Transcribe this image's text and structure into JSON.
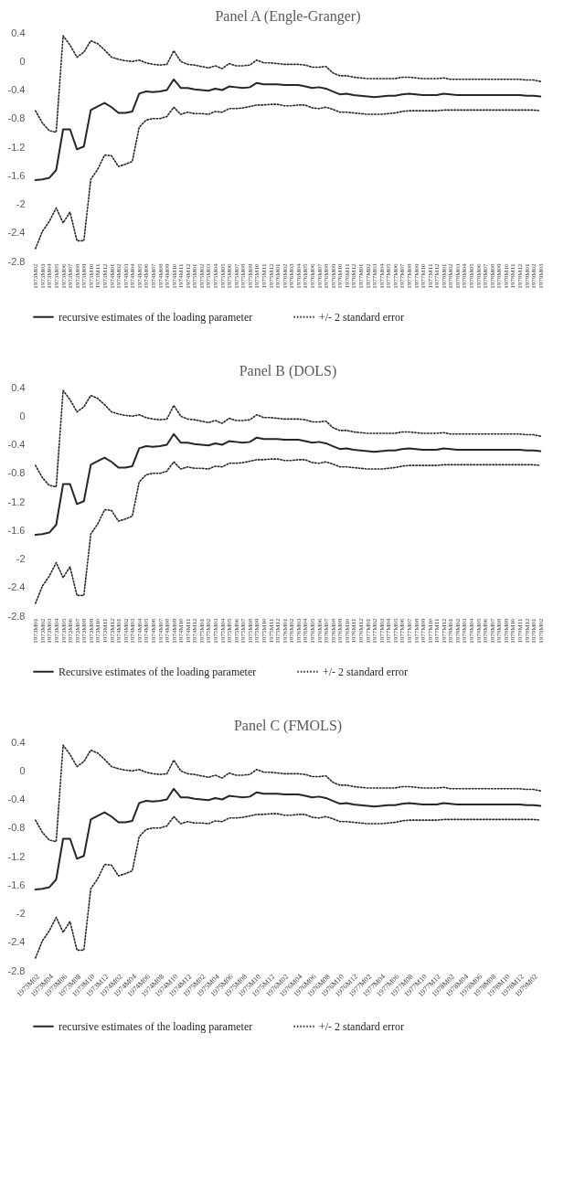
{
  "chart_data": [
    {
      "type": "line",
      "title": "Panel A (Engle-Granger)",
      "legend": "bottom",
      "grid": false,
      "categories": [
        "1973M02",
        "1973M03",
        "1973M04",
        "1973M05",
        "1973M06",
        "1973M07",
        "1973M08",
        "1973M09",
        "1973M10",
        "1973M11",
        "1973M12",
        "1974M01",
        "1974M02",
        "1974M03",
        "1974M04",
        "1974M05",
        "1974M06",
        "1974M07",
        "1974M08",
        "1974M09",
        "1974M10",
        "1974M11",
        "1974M12",
        "1975M01",
        "1975M02",
        "1975M03",
        "1975M04",
        "1975M05",
        "1975M06",
        "1975M07",
        "1975M08",
        "1975M09",
        "1975M10",
        "1975M11",
        "1975M12",
        "1976M01",
        "1976M02",
        "1976M03",
        "1976M04",
        "1976M05",
        "1976M06",
        "1976M07",
        "1976M08",
        "1976M09",
        "1976M10",
        "1976M11",
        "1976M12",
        "1977M01",
        "1977M02",
        "1977M03",
        "1977M04",
        "1977M05",
        "1977M06",
        "1977M07",
        "1977M08",
        "1977M09",
        "1977M10",
        "1977M11",
        "1977M12",
        "1978M01",
        "1978M02",
        "1978M03",
        "1978M04",
        "1978M05",
        "1978M06",
        "1978M07",
        "1978M08",
        "1978M09",
        "1978M10",
        "1978M11",
        "1978M12",
        "1979M01",
        "1979M02",
        "1979M03"
      ],
      "ylim": [
        -2.8,
        0.4
      ],
      "yticks": [
        -2.8,
        -2.4,
        -2,
        -1.6,
        -1.2,
        -0.8,
        -0.4,
        0,
        0.4
      ],
      "series": [
        {
          "name": "recursive estimates of the loading parameter",
          "color": "#262626",
          "line_style": "solid",
          "values": [
            -1.66,
            -1.65,
            -1.63,
            -1.52,
            -0.95,
            -0.95,
            -1.23,
            -1.19,
            -0.68,
            -0.63,
            -0.58,
            -0.64,
            -0.72,
            -0.72,
            -0.7,
            -0.45,
            -0.42,
            -0.43,
            -0.42,
            -0.4,
            -0.25,
            -0.37,
            -0.37,
            -0.39,
            -0.4,
            -0.41,
            -0.38,
            -0.4,
            -0.35,
            -0.36,
            -0.37,
            -0.36,
            -0.3,
            -0.32,
            -0.32,
            -0.32,
            -0.33,
            -0.33,
            -0.33,
            -0.35,
            -0.37,
            -0.36,
            -0.38,
            -0.42,
            -0.46,
            -0.45,
            -0.47,
            -0.48,
            -0.49,
            -0.5,
            -0.49,
            -0.48,
            -0.48,
            -0.46,
            -0.45,
            -0.46,
            -0.47,
            -0.47,
            -0.47,
            -0.45,
            -0.46,
            -0.47,
            -0.47,
            -0.47,
            -0.47,
            -0.47,
            -0.47,
            -0.47,
            -0.47,
            -0.47,
            -0.47,
            -0.48,
            -0.48,
            -0.49
          ]
        },
        {
          "name": "+/- 2 standard error",
          "color": "#262626",
          "line_style": "dotted",
          "values": [
            -0.69,
            -0.86,
            -0.97,
            -0.99,
            0.36,
            0.23,
            0.06,
            0.13,
            0.29,
            0.25,
            0.16,
            0.06,
            0.03,
            0.01,
            0,
            0.02,
            -0.02,
            -0.04,
            -0.05,
            -0.04,
            0.15,
            0,
            -0.04,
            -0.05,
            -0.07,
            -0.09,
            -0.06,
            -0.1,
            -0.03,
            -0.06,
            -0.06,
            -0.05,
            0.02,
            -0.02,
            -0.02,
            -0.03,
            -0.04,
            -0.04,
            -0.04,
            -0.05,
            -0.08,
            -0.08,
            -0.07,
            -0.16,
            -0.2,
            -0.2,
            -0.22,
            -0.23,
            -0.24,
            -0.24,
            -0.24,
            -0.24,
            -0.24,
            -0.22,
            -0.22,
            -0.23,
            -0.24,
            -0.24,
            -0.24,
            -0.23,
            -0.25,
            -0.25,
            -0.25,
            -0.25,
            -0.25,
            -0.25,
            -0.25,
            -0.25,
            -0.25,
            -0.25,
            -0.25,
            -0.26,
            -0.26,
            -0.28
          ]
        },
        {
          "color": "#262626",
          "line_style": "dotted",
          "values": [
            -2.62,
            -2.38,
            -2.24,
            -2.05,
            -2.26,
            -2.11,
            -2.51,
            -2.51,
            -1.65,
            -1.51,
            -1.31,
            -1.32,
            -1.47,
            -1.44,
            -1.4,
            -0.92,
            -0.82,
            -0.8,
            -0.8,
            -0.77,
            -0.64,
            -0.74,
            -0.71,
            -0.73,
            -0.73,
            -0.74,
            -0.7,
            -0.71,
            -0.66,
            -0.66,
            -0.65,
            -0.63,
            -0.61,
            -0.61,
            -0.6,
            -0.6,
            -0.62,
            -0.62,
            -0.61,
            -0.61,
            -0.65,
            -0.66,
            -0.64,
            -0.67,
            -0.71,
            -0.71,
            -0.72,
            -0.73,
            -0.74,
            -0.74,
            -0.74,
            -0.73,
            -0.72,
            -0.7,
            -0.69,
            -0.69,
            -0.69,
            -0.69,
            -0.69,
            -0.68,
            -0.68,
            -0.68,
            -0.68,
            -0.68,
            -0.68,
            -0.68,
            -0.68,
            -0.68,
            -0.68,
            -0.68,
            -0.68,
            -0.68,
            -0.68,
            -0.69
          ]
        }
      ]
    },
    {
      "type": "line",
      "title": "Panel B (DOLS)",
      "legend": "bottom",
      "grid": false,
      "categories": [
        "1973M01",
        "1973M02",
        "1973M03",
        "1973M04",
        "1973M05",
        "1973M06",
        "1973M07",
        "1973M08",
        "1973M09",
        "1973M10",
        "1973M11",
        "1973M12",
        "1974M01",
        "1974M02",
        "1974M03",
        "1974M04",
        "1974M05",
        "1974M06",
        "1974M07",
        "1974M08",
        "1974M09",
        "1974M10",
        "1974M11",
        "1974M12",
        "1975M01",
        "1975M02",
        "1975M03",
        "1975M04",
        "1975M05",
        "1975M06",
        "1975M07",
        "1975M08",
        "1975M09",
        "1975M10",
        "1975M11",
        "1975M12",
        "1976M01",
        "1976M02",
        "1976M03",
        "1976M04",
        "1976M05",
        "1976M06",
        "1976M07",
        "1976M08",
        "1976M09",
        "1976M10",
        "1976M11",
        "1976M12",
        "1977M01",
        "1977M02",
        "1977M03",
        "1977M04",
        "1977M05",
        "1977M06",
        "1977M07",
        "1977M08",
        "1977M09",
        "1977M10",
        "1977M11",
        "1977M12",
        "1978M01",
        "1978M02",
        "1978M03",
        "1978M04",
        "1978M05",
        "1978M06",
        "1978M07",
        "1978M08",
        "1978M09",
        "1978M10",
        "1978M11",
        "1978M12",
        "1979M01",
        "1979M02"
      ],
      "ylim": [
        -2.8,
        0.4
      ],
      "yticks": [
        -2.8,
        -2.4,
        -2,
        -1.6,
        -1.2,
        -0.8,
        -0.4,
        0,
        0.4
      ],
      "series": [
        {
          "name": "Recursive estimates of the loading parameter",
          "color": "#262626",
          "line_style": "solid",
          "values": [
            -1.66,
            -1.65,
            -1.63,
            -1.52,
            -0.95,
            -0.95,
            -1.23,
            -1.19,
            -0.68,
            -0.63,
            -0.58,
            -0.64,
            -0.72,
            -0.72,
            -0.7,
            -0.45,
            -0.42,
            -0.43,
            -0.42,
            -0.4,
            -0.25,
            -0.37,
            -0.37,
            -0.39,
            -0.4,
            -0.41,
            -0.38,
            -0.4,
            -0.35,
            -0.36,
            -0.37,
            -0.36,
            -0.3,
            -0.32,
            -0.32,
            -0.32,
            -0.33,
            -0.33,
            -0.33,
            -0.35,
            -0.37,
            -0.36,
            -0.38,
            -0.42,
            -0.46,
            -0.45,
            -0.47,
            -0.48,
            -0.49,
            -0.5,
            -0.49,
            -0.48,
            -0.48,
            -0.46,
            -0.45,
            -0.46,
            -0.47,
            -0.47,
            -0.47,
            -0.45,
            -0.46,
            -0.47,
            -0.47,
            -0.47,
            -0.47,
            -0.47,
            -0.47,
            -0.47,
            -0.47,
            -0.47,
            -0.47,
            -0.48,
            -0.48,
            -0.49
          ]
        },
        {
          "name": "+/- 2 standard error",
          "color": "#262626",
          "line_style": "dotted",
          "values": [
            -0.69,
            -0.86,
            -0.97,
            -0.99,
            0.36,
            0.23,
            0.06,
            0.13,
            0.29,
            0.25,
            0.16,
            0.06,
            0.03,
            0.01,
            0,
            0.02,
            -0.02,
            -0.04,
            -0.05,
            -0.04,
            0.15,
            0,
            -0.04,
            -0.05,
            -0.07,
            -0.09,
            -0.06,
            -0.1,
            -0.03,
            -0.06,
            -0.06,
            -0.05,
            0.02,
            -0.02,
            -0.02,
            -0.03,
            -0.04,
            -0.04,
            -0.04,
            -0.05,
            -0.08,
            -0.08,
            -0.07,
            -0.16,
            -0.2,
            -0.2,
            -0.22,
            -0.23,
            -0.24,
            -0.24,
            -0.24,
            -0.24,
            -0.24,
            -0.22,
            -0.22,
            -0.23,
            -0.24,
            -0.24,
            -0.24,
            -0.23,
            -0.25,
            -0.25,
            -0.25,
            -0.25,
            -0.25,
            -0.25,
            -0.25,
            -0.25,
            -0.25,
            -0.25,
            -0.25,
            -0.26,
            -0.26,
            -0.28
          ]
        },
        {
          "color": "#262626",
          "line_style": "dotted",
          "values": [
            -2.62,
            -2.38,
            -2.24,
            -2.05,
            -2.26,
            -2.11,
            -2.51,
            -2.51,
            -1.65,
            -1.51,
            -1.31,
            -1.32,
            -1.47,
            -1.44,
            -1.4,
            -0.92,
            -0.82,
            -0.8,
            -0.8,
            -0.77,
            -0.64,
            -0.74,
            -0.71,
            -0.73,
            -0.73,
            -0.74,
            -0.7,
            -0.71,
            -0.66,
            -0.66,
            -0.65,
            -0.63,
            -0.61,
            -0.61,
            -0.6,
            -0.6,
            -0.62,
            -0.62,
            -0.61,
            -0.61,
            -0.65,
            -0.66,
            -0.64,
            -0.67,
            -0.71,
            -0.71,
            -0.72,
            -0.73,
            -0.74,
            -0.74,
            -0.74,
            -0.73,
            -0.72,
            -0.7,
            -0.69,
            -0.69,
            -0.69,
            -0.69,
            -0.69,
            -0.68,
            -0.68,
            -0.68,
            -0.68,
            -0.68,
            -0.68,
            -0.68,
            -0.68,
            -0.68,
            -0.68,
            -0.68,
            -0.68,
            -0.68,
            -0.68,
            -0.69
          ]
        }
      ]
    },
    {
      "type": "line",
      "title": "Panel C (FMOLS)",
      "legend": "bottom",
      "grid": false,
      "categories": [
        "1973M02",
        null,
        "1973M04",
        null,
        "1973M06",
        null,
        "1973M08",
        null,
        "1973M10",
        null,
        "1973M12",
        null,
        "1974M02",
        null,
        "1974M04",
        null,
        "1974M06",
        null,
        "1974M08",
        null,
        "1974M10",
        null,
        "1974M12",
        null,
        "1975M02",
        null,
        "1975M04",
        null,
        "1975M06",
        null,
        "1975M08",
        null,
        "1975M10",
        null,
        "1975M12",
        null,
        "1976M02",
        null,
        "1976M04",
        null,
        "1976M06",
        null,
        "1976M08",
        null,
        "1976M10",
        null,
        "1976M12",
        null,
        "1977M02",
        null,
        "1977M04",
        null,
        "1977M06",
        null,
        "1977M08",
        null,
        "1977M10",
        null,
        "1977M12",
        null,
        "1978M02",
        null,
        "1978M04",
        null,
        "1978M06",
        null,
        "1978M08",
        null,
        "1978M10",
        null,
        "1978M12",
        null,
        "1979M02",
        null
      ],
      "ylim": [
        -2.8,
        0.4
      ],
      "yticks": [
        -2.8,
        -2.4,
        -2,
        -1.6,
        -1.2,
        -0.8,
        -0.4,
        0,
        0.4
      ],
      "series": [
        {
          "name": "recursive estimates of the loading parameter",
          "color": "#262626",
          "line_style": "solid",
          "values": [
            -1.66,
            -1.65,
            -1.63,
            -1.52,
            -0.95,
            -0.95,
            -1.23,
            -1.19,
            -0.68,
            -0.63,
            -0.58,
            -0.64,
            -0.72,
            -0.72,
            -0.7,
            -0.45,
            -0.42,
            -0.43,
            -0.42,
            -0.4,
            -0.25,
            -0.37,
            -0.37,
            -0.39,
            -0.4,
            -0.41,
            -0.38,
            -0.4,
            -0.35,
            -0.36,
            -0.37,
            -0.36,
            -0.3,
            -0.32,
            -0.32,
            -0.32,
            -0.33,
            -0.33,
            -0.33,
            -0.35,
            -0.37,
            -0.36,
            -0.38,
            -0.42,
            -0.46,
            -0.45,
            -0.47,
            -0.48,
            -0.49,
            -0.5,
            -0.49,
            -0.48,
            -0.48,
            -0.46,
            -0.45,
            -0.46,
            -0.47,
            -0.47,
            -0.47,
            -0.45,
            -0.46,
            -0.47,
            -0.47,
            -0.47,
            -0.47,
            -0.47,
            -0.47,
            -0.47,
            -0.47,
            -0.47,
            -0.47,
            -0.48,
            -0.48,
            -0.49
          ]
        },
        {
          "name": "+/- 2 standard error",
          "color": "#262626",
          "line_style": "dotted",
          "values": [
            -0.69,
            -0.86,
            -0.97,
            -0.99,
            0.36,
            0.23,
            0.06,
            0.13,
            0.29,
            0.25,
            0.16,
            0.06,
            0.03,
            0.01,
            0,
            0.02,
            -0.02,
            -0.04,
            -0.05,
            -0.04,
            0.15,
            0,
            -0.04,
            -0.05,
            -0.07,
            -0.09,
            -0.06,
            -0.1,
            -0.03,
            -0.06,
            -0.06,
            -0.05,
            0.02,
            -0.02,
            -0.02,
            -0.03,
            -0.04,
            -0.04,
            -0.04,
            -0.05,
            -0.08,
            -0.08,
            -0.07,
            -0.16,
            -0.2,
            -0.2,
            -0.22,
            -0.23,
            -0.24,
            -0.24,
            -0.24,
            -0.24,
            -0.24,
            -0.22,
            -0.22,
            -0.23,
            -0.24,
            -0.24,
            -0.24,
            -0.23,
            -0.25,
            -0.25,
            -0.25,
            -0.25,
            -0.25,
            -0.25,
            -0.25,
            -0.25,
            -0.25,
            -0.25,
            -0.25,
            -0.26,
            -0.26,
            -0.28
          ]
        },
        {
          "color": "#262626",
          "line_style": "dotted",
          "values": [
            -2.62,
            -2.38,
            -2.24,
            -2.05,
            -2.26,
            -2.11,
            -2.51,
            -2.51,
            -1.65,
            -1.51,
            -1.31,
            -1.32,
            -1.47,
            -1.44,
            -1.4,
            -0.92,
            -0.82,
            -0.8,
            -0.8,
            -0.77,
            -0.64,
            -0.74,
            -0.71,
            -0.73,
            -0.73,
            -0.74,
            -0.7,
            -0.71,
            -0.66,
            -0.66,
            -0.65,
            -0.63,
            -0.61,
            -0.61,
            -0.6,
            -0.6,
            -0.62,
            -0.62,
            -0.61,
            -0.61,
            -0.65,
            -0.66,
            -0.64,
            -0.67,
            -0.71,
            -0.71,
            -0.72,
            -0.73,
            -0.74,
            -0.74,
            -0.74,
            -0.73,
            -0.72,
            -0.7,
            -0.69,
            -0.69,
            -0.69,
            -0.69,
            -0.69,
            -0.68,
            -0.68,
            -0.68,
            -0.68,
            -0.68,
            -0.68,
            -0.68,
            -0.68,
            -0.68,
            -0.68,
            -0.68,
            -0.68,
            -0.68,
            -0.68,
            -0.69
          ]
        }
      ]
    }
  ]
}
